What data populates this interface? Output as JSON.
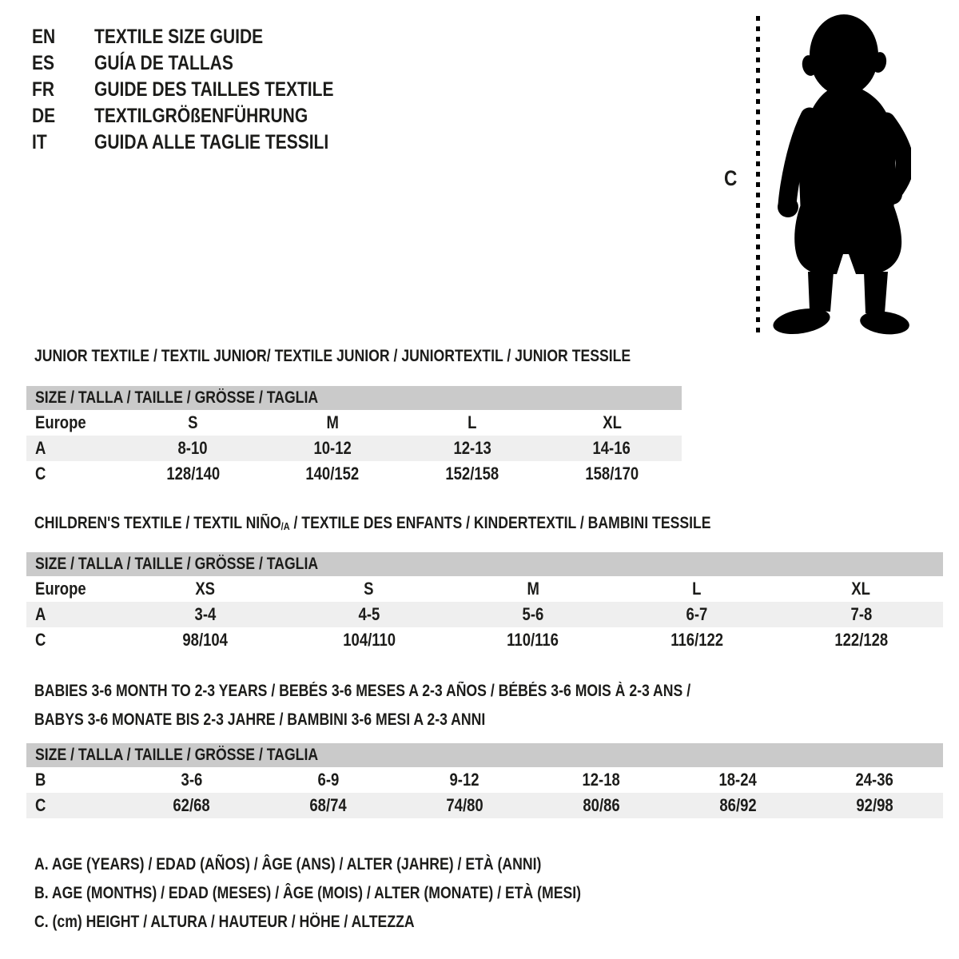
{
  "colors": {
    "background": "#ffffff",
    "size_header_bar": "#cacaca",
    "shaded_row": "#efefef",
    "text": "#1c1c1a"
  },
  "languages": [
    {
      "code": "EN",
      "title": "TEXTILE SIZE GUIDE"
    },
    {
      "code": "ES",
      "title": "GUÍA DE TALLAS"
    },
    {
      "code": "FR",
      "title": "GUIDE DES TAILLES TEXTILE"
    },
    {
      "code": "DE",
      "title": "TEXTILGRÖßENFÜHRUNG"
    },
    {
      "code": "IT",
      "title": "GUIDA ALLE TAGLIE TESSILI"
    }
  ],
  "figure": {
    "icon": "toddler-silhouette",
    "measure_label": "C"
  },
  "sections": {
    "junior": {
      "title": "JUNIOR TEXTILE / TEXTIL JUNIOR/ TEXTILE JUNIOR / JUNIORTEXTIL / JUNIOR TESSILE",
      "size_header": "SIZE / TALLA / TAILLE / GRÖSSE / TAGLIA",
      "rows": [
        {
          "label": "Europe",
          "values": [
            "S",
            "M",
            "L",
            "XL"
          ]
        },
        {
          "label": "A",
          "values": [
            "8-10",
            "10-12",
            "12-13",
            "14-16"
          ]
        },
        {
          "label": "C",
          "values": [
            "128/140",
            "140/152",
            "152/158",
            "158/170"
          ]
        }
      ]
    },
    "children": {
      "title_main": "CHILDREN'S TEXTILE / TEXTIL NIÑO",
      "title_sub": "/A",
      "title_rest": " / TEXTILE DES ENFANTS / KINDERTEXTIL / BAMBINI TESSILE",
      "size_header": "SIZE / TALLA / TAILLE / GRÖSSE / TAGLIA",
      "rows": [
        {
          "label": "Europe",
          "values": [
            "XS",
            "S",
            "M",
            "L",
            "XL"
          ]
        },
        {
          "label": "A",
          "values": [
            "3-4",
            "4-5",
            "5-6",
            "6-7",
            "7-8"
          ]
        },
        {
          "label": "C",
          "values": [
            "98/104",
            "104/110",
            "110/116",
            "116/122",
            "122/128"
          ]
        }
      ]
    },
    "babies": {
      "title_line1": "BABIES 3-6 MONTH TO 2-3 YEARS / BEBÉS 3-6 MESES A 2-3 AÑOS / BÉBÉS 3-6 MOIS À 2-3 ANS /",
      "title_line2": "BABYS 3-6 MONATE BIS 2-3 JAHRE / BAMBINI 3-6 MESI A 2-3 ANNI",
      "size_header": "SIZE / TALLA / TAILLE / GRÖSSE / TAGLIA",
      "rows": [
        {
          "label": "B",
          "values": [
            "3-6",
            "6-9",
            "9-12",
            "12-18",
            "18-24",
            "24-36"
          ]
        },
        {
          "label": "C",
          "values": [
            "62/68",
            "68/74",
            "74/80",
            "80/86",
            "86/92",
            "92/98"
          ]
        }
      ]
    }
  },
  "legend": [
    "A. AGE (YEARS) / EDAD (AÑOS) / ÂGE (ANS) / ALTER (JAHRE) / ETÀ (ANNI)",
    "B. AGE (MONTHS) / EDAD (MESES) / ÂGE (MOIS) / ALTER (MONATE) / ETÀ (MESI)",
    "C. (cm) HEIGHT / ALTURA / HAUTEUR / HÖHE / ALTEZZA"
  ]
}
